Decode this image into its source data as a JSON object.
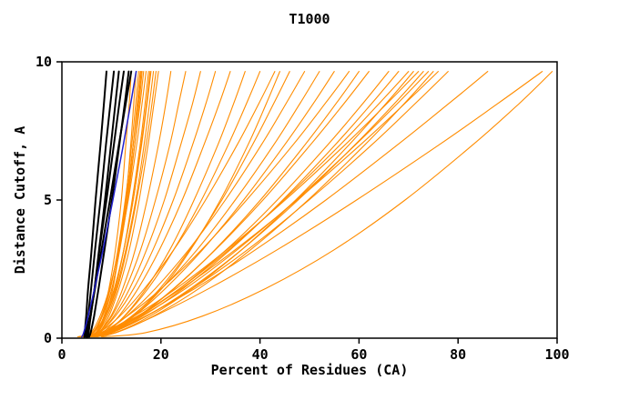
{
  "chart_data": {
    "type": "line",
    "title": "T1000",
    "xlabel": "Percent of Residues (CA)",
    "ylabel": "Distance Cutoff, A",
    "xlim": [
      0,
      100
    ],
    "ylim": [
      0,
      10
    ],
    "xticks": [
      0,
      20,
      40,
      60,
      80,
      100
    ],
    "yticks": [
      0,
      5,
      10
    ],
    "grid": false,
    "legend_position": "none",
    "background": "#ffffff",
    "frame_color": "#000000",
    "y_samples": [
      0.05,
      0.2,
      0.8,
      1.8,
      3.2,
      5,
      7,
      8.5,
      9.65
    ],
    "series": [
      {
        "name": "model-curves-orange",
        "color": "#ff8c00",
        "stroke_width": 1.1,
        "curves": [
          [
            3.5,
            6.4,
            8.1,
            9.5,
            10.8,
            12.0,
            12.9,
            13.6,
            14.0
          ],
          [
            4,
            7.1,
            8.8,
            10.3,
            11.6,
            12.9,
            13.9,
            14.5,
            15.0
          ],
          [
            3.8,
            6.3,
            8.1,
            9.8,
            11.3,
            12.8,
            14.1,
            14.9,
            15.5
          ],
          [
            4.2,
            6.3,
            8.0,
            9.7,
            11.4,
            13.0,
            14.4,
            15.4,
            16.0
          ],
          [
            4.5,
            6.2,
            8.0,
            9.7,
            11.4,
            13.1,
            14.7,
            15.8,
            16.5
          ],
          [
            4,
            5.9,
            7.7,
            9.6,
            11.5,
            13.4,
            15.1,
            16.2,
            17.0
          ],
          [
            4.8,
            7.0,
            8.9,
            10.8,
            12.5,
            14.2,
            15.8,
            16.8,
            17.5
          ],
          [
            5,
            6.9,
            8.7,
            10.6,
            12.5,
            14.4,
            16.1,
            17.2,
            18.0
          ],
          [
            4.3,
            6.8,
            8.9,
            11.0,
            12.9,
            14.9,
            16.6,
            17.7,
            18.5
          ],
          [
            5.2,
            7.2,
            9.2,
            11.2,
            13.1,
            15.1,
            17.0,
            18.2,
            19.0
          ],
          [
            3.2,
            6.2,
            8.2,
            10.1,
            11.7,
            13.3,
            14.7,
            15.6,
            16.2
          ],
          [
            4.6,
            6.8,
            8.5,
            10.1,
            11.6,
            13.1,
            14.4,
            15.2,
            15.8
          ],
          [
            3.6,
            6.4,
            8.6,
            10.6,
            12.5,
            14.4,
            16.0,
            17.1,
            17.8
          ],
          [
            5.5,
            7.5,
            9.5,
            11.5,
            13.6,
            15.6,
            17.4,
            18.6,
            19.5
          ],
          [
            5,
            7.4,
            9.9,
            12.3,
            14.8,
            17.2,
            19.5,
            21.0,
            22.0
          ],
          [
            5,
            7.4,
            10.1,
            12.9,
            15.9,
            18.9,
            21.8,
            23.6,
            25.0
          ],
          [
            5.5,
            7.7,
            10.5,
            13.7,
            17.1,
            20.7,
            24.0,
            26.4,
            28.0
          ],
          [
            5,
            7.5,
            10.8,
            14.5,
            18.4,
            22.5,
            26.4,
            29.1,
            31.0
          ],
          [
            6,
            8.2,
            11.5,
            15.4,
            19.7,
            24.3,
            28.7,
            31.8,
            34.0
          ],
          [
            5.5,
            8.6,
            12.6,
            17.0,
            21.8,
            26.7,
            31.5,
            34.7,
            37.0
          ],
          [
            6,
            8.7,
            12.7,
            17.4,
            22.6,
            28.2,
            33.6,
            37.3,
            40.0
          ],
          [
            5,
            7.5,
            11.7,
            16.7,
            22.6,
            29.0,
            35.4,
            39.8,
            43.0
          ],
          [
            6.5,
            9.7,
            14.3,
            19.8,
            25.8,
            32.3,
            38.5,
            42.8,
            46.0
          ],
          [
            5.5,
            8.4,
            13.1,
            18.9,
            25.6,
            33.0,
            40.3,
            45.3,
            49.0
          ],
          [
            6,
            9.0,
            14.1,
            20.2,
            27.3,
            35.0,
            42.8,
            48.1,
            52.0
          ],
          [
            6.5,
            9.5,
            14.6,
            20.9,
            28.4,
            36.7,
            45.0,
            50.8,
            55.0
          ],
          [
            5,
            7.9,
            13.2,
            20.1,
            28.2,
            37.3,
            46.7,
            53.2,
            58.0
          ],
          [
            6,
            9.6,
            15.5,
            22.7,
            30.9,
            40.1,
            49.1,
            55.4,
            60.0
          ],
          [
            7,
            10.0,
            15.5,
            22.6,
            31.0,
            40.6,
            50.2,
            57.0,
            62.0
          ],
          [
            4.5,
            9.2,
            14.5,
            20.2,
            26.0,
            32.0,
            37.6,
            41.3,
            44.0
          ],
          [
            5,
            9.0,
            15.7,
            23.8,
            33.2,
            43.5,
            53.7,
            60.8,
            66.0
          ],
          [
            6,
            9.8,
            16.3,
            24.5,
            34.0,
            44.6,
            55.2,
            62.6,
            68.0
          ],
          [
            5.5,
            9.0,
            15.4,
            23.8,
            33.7,
            44.8,
            56.2,
            64.1,
            70.0
          ],
          [
            6.5,
            10.8,
            17.8,
            26.4,
            36.3,
            47.2,
            58.0,
            65.5,
            71.0
          ],
          [
            5,
            8.2,
            14.6,
            23.1,
            33.3,
            45.1,
            57.2,
            65.7,
            72.0
          ],
          [
            6,
            10.1,
            17.1,
            26.0,
            36.3,
            47.7,
            59.2,
            67.2,
            73.0
          ],
          [
            5.5,
            9.3,
            16.0,
            25.0,
            35.4,
            47.3,
            59.3,
            67.8,
            74.0
          ],
          [
            6.5,
            11.0,
            18.5,
            27.7,
            38.1,
            49.7,
            61.2,
            69.2,
            75.0
          ],
          [
            5,
            8.4,
            15.2,
            24.2,
            35.0,
            47.5,
            60.3,
            69.3,
            76.0
          ],
          [
            6,
            10.0,
            17.1,
            26.4,
            37.5,
            49.9,
            62.6,
            71.4,
            78.0
          ],
          [
            6,
            9.6,
            16.9,
            26.9,
            39.1,
            53.3,
            67.8,
            78.2,
            86.0
          ],
          [
            7,
            10.8,
            18.7,
            29.7,
            43.5,
            59.5,
            76.2,
            88.1,
            97.0
          ],
          [
            8,
            16.9,
            28.4,
            41.2,
            55.0,
            69.3,
            83.0,
            92.4,
            99.0
          ]
        ]
      },
      {
        "name": "model-curves-black",
        "color": "#000000",
        "stroke_width": 2,
        "curves": [
          [
            4.5,
            4.6,
            4.9,
            5.3,
            6.0,
            6.8,
            7.8,
            8.5,
            9.0
          ],
          [
            4.8,
            4.9,
            5.3,
            5.9,
            6.7,
            7.8,
            8.9,
            9.8,
            10.5
          ],
          [
            5.0,
            5.2,
            5.8,
            6.6,
            7.5,
            8.7,
            9.9,
            10.8,
            11.5
          ],
          [
            5.2,
            5.4,
            5.8,
            6.6,
            7.6,
            9.0,
            10.5,
            11.6,
            12.5
          ],
          [
            5.5,
            5.8,
            6.5,
            7.4,
            8.6,
            10.1,
            11.6,
            12.7,
            13.5
          ],
          [
            5.0,
            5.2,
            5.7,
            6.7,
            8.0,
            9.7,
            11.5,
            12.9,
            14.0
          ]
        ]
      },
      {
        "name": "model-curve-blue",
        "color": "#2121cc",
        "stroke_width": 1.5,
        "curves": [
          [
            4.0,
            4.4,
            5.3,
            6.6,
            8.3,
            10.3,
            12.4,
            13.9,
            15.0
          ]
        ]
      }
    ]
  }
}
